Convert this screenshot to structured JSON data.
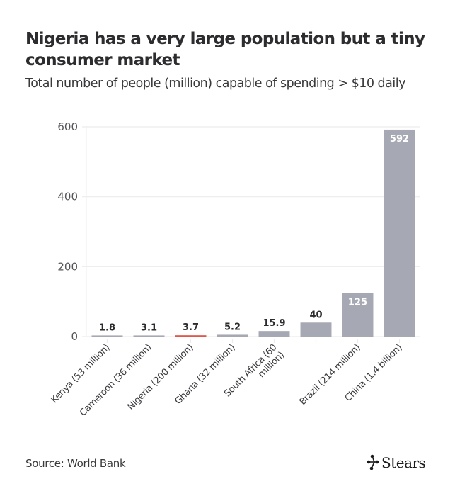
{
  "chart_data": {
    "type": "bar",
    "title": "Nigeria has a very large population but a tiny consumer market",
    "subtitle": "Total number of people (million) capable of spending > $10 daily",
    "xlabel": "",
    "ylabel": "",
    "ylim": [
      0,
      600
    ],
    "yticks": [
      0,
      200,
      400,
      600
    ],
    "ytick_labels": [
      "0",
      "200",
      "400",
      "600"
    ],
    "grid": true,
    "categories": [
      "Kenya (53 million)",
      "Cameroon (36 million)",
      "Nigeria (200 million)",
      "Ghana (32 million)",
      "South Africa (60 million)",
      "",
      "Brazil (214 million)",
      "China (1.4 billion)"
    ],
    "category_label_lines": [
      [
        "Kenya (53 million)"
      ],
      [
        "Cameroon (36 million)"
      ],
      [
        "Nigeria (200 million)"
      ],
      [
        "Ghana (32 million)"
      ],
      [
        "South Africa (60",
        "million)"
      ],
      [],
      [
        "Brazil (214 million)"
      ],
      [
        "China (1.4 billion)"
      ]
    ],
    "values": [
      1.8,
      3.1,
      3.7,
      5.2,
      15.9,
      40,
      125,
      592
    ],
    "value_labels": [
      "1.8",
      "3.1",
      "3.7",
      "5.2",
      "15.9",
      "40",
      "125",
      "592"
    ],
    "highlight_index": 2,
    "colors": {
      "bar": "#a6a9b4",
      "highlight": "#e0584a",
      "grid": "#ececee"
    },
    "source": "Source: World Bank"
  },
  "header": {
    "title": "Nigeria has a very large population but a tiny consumer market",
    "subtitle": "Total number of people (million) capable of spending > $10 daily"
  },
  "footer": {
    "source": "Source: World Bank",
    "logo_text": "Stears",
    "logo_icon": "stears-network-icon"
  }
}
